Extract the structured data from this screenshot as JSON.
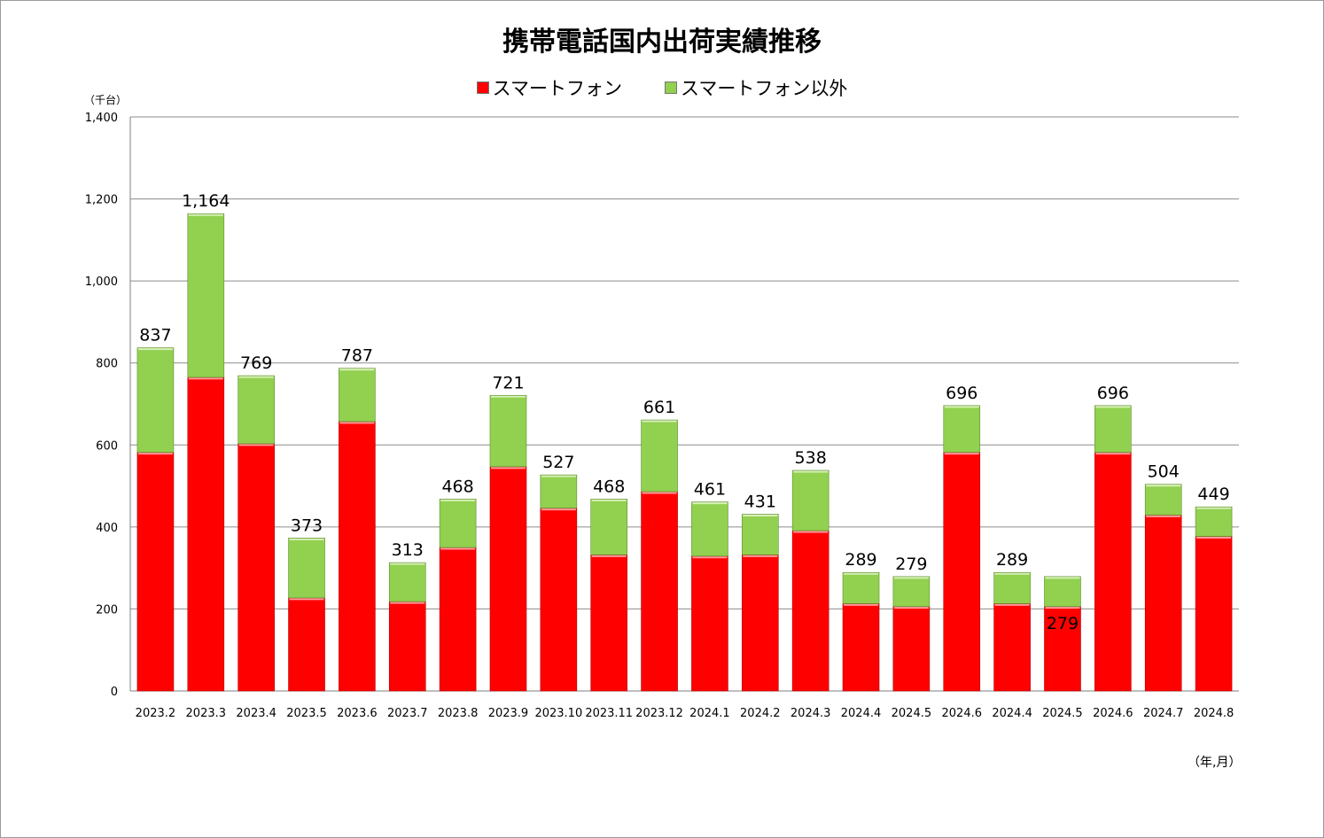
{
  "chart_data": {
    "type": "bar",
    "stacked": true,
    "title": "携帯電話国内出荷実績推移",
    "ylabel": "（千台）",
    "xlabel": "（年,月）",
    "ylim": [
      0,
      1400
    ],
    "yticks": [
      0,
      200,
      400,
      600,
      800,
      1000,
      1200,
      1400
    ],
    "ytick_labels": [
      "0",
      "200",
      "400",
      "600",
      "800",
      "1,000",
      "1,200",
      "1,400"
    ],
    "grid": true,
    "legend_position": "top-center",
    "categories": [
      "2023.2",
      "2023.3",
      "2023.4",
      "2023.5",
      "2023.6",
      "2023.7",
      "2023.8",
      "2023.9",
      "2023.10",
      "2023.11",
      "2023.12",
      "2024.1",
      "2024.2",
      "2024.3",
      "2024.4",
      "2024.5",
      "2024.6",
      "2024.4",
      "2024.5",
      "2024.6",
      "2024.7",
      "2024.8"
    ],
    "series": [
      {
        "name": "スマートフォン",
        "color": "#ff0000",
        "values": [
          582,
          765,
          603,
          227,
          657,
          218,
          350,
          547,
          446,
          332,
          486,
          329,
          332,
          391,
          213,
          206,
          582,
          213,
          206,
          582,
          429,
          377
        ]
      },
      {
        "name": "スマートフォン以外",
        "color": "#92d050",
        "values": [
          255,
          399,
          166,
          146,
          130,
          95,
          118,
          174,
          81,
          136,
          175,
          132,
          99,
          147,
          76,
          73,
          114,
          76,
          73,
          114,
          75,
          72
        ]
      }
    ],
    "totals": [
      837,
      1164,
      769,
      373,
      787,
      313,
      468,
      721,
      527,
      468,
      661,
      461,
      431,
      538,
      289,
      279,
      696,
      289,
      279,
      696,
      504,
      449
    ],
    "total_labels": [
      "837",
      "1,164",
      "769",
      "373",
      "787",
      "313",
      "468",
      "721",
      "527",
      "468",
      "661",
      "461",
      "431",
      "538",
      "289",
      "279",
      "696",
      "289",
      "279",
      "696",
      "504",
      "449"
    ]
  }
}
